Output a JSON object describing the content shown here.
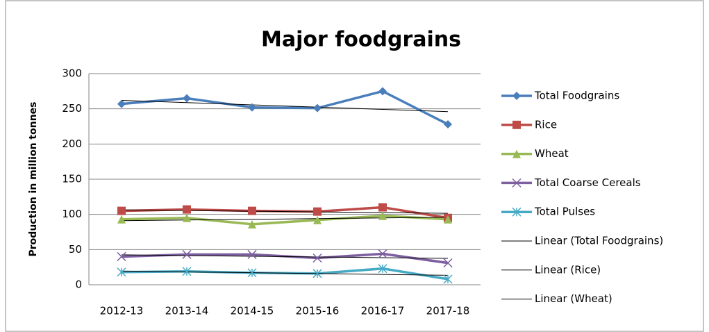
{
  "chart_data": {
    "type": "line",
    "title": "Major foodgrains",
    "y_label": "Production in million tonnes",
    "categories": [
      "2012-13",
      "2013-14",
      "2014-15",
      "2015-16",
      "2016-17",
      "2017-18"
    ],
    "series": [
      {
        "name": "Total Foodgrains",
        "color": "#4a7ebb",
        "marker": "diamond",
        "values": [
          257,
          265,
          252,
          251,
          275,
          228
        ]
      },
      {
        "name": "Rice",
        "color": "#be4b48",
        "marker": "square",
        "values": [
          105,
          107,
          105,
          104,
          110,
          95
        ]
      },
      {
        "name": "Wheat",
        "color": "#98b954",
        "marker": "triangle",
        "values": [
          93,
          95,
          86,
          92,
          98,
          93
        ]
      },
      {
        "name": "Total Coarse Cereals",
        "color": "#7d5fa0",
        "marker": "x",
        "values": [
          40,
          43,
          43,
          38,
          44,
          31
        ]
      },
      {
        "name": "Total Pulses",
        "color": "#46aac5",
        "marker": "star",
        "values": [
          18,
          19,
          17,
          16,
          23,
          8
        ]
      }
    ],
    "trendlines": [
      {
        "name": "Linear (Total Foodgrains)",
        "color": "#000000",
        "values": [
          262,
          258.8,
          255.6,
          252.4,
          249.2,
          246
        ]
      },
      {
        "name": "Linear (Rice)",
        "color": "#000000",
        "values": [
          106.5,
          105.5,
          104.5,
          103.5,
          102.5,
          101.5
        ]
      },
      {
        "name": "Linear (Wheat)",
        "color": "#000000",
        "values": [
          91,
          92,
          93,
          94,
          95,
          96
        ]
      },
      {
        "color": "#000000",
        "values": [
          42.5,
          41.5,
          40.5,
          39.5,
          38.5,
          37.5
        ]
      },
      {
        "color": "#000000",
        "values": [
          19.5,
          18.3,
          17.1,
          15.9,
          14.7,
          13.5
        ]
      }
    ],
    "ylim": [
      0,
      300
    ],
    "yticks": [
      0,
      50,
      100,
      150,
      200,
      250,
      300
    ],
    "grid": true,
    "legend": "right"
  }
}
